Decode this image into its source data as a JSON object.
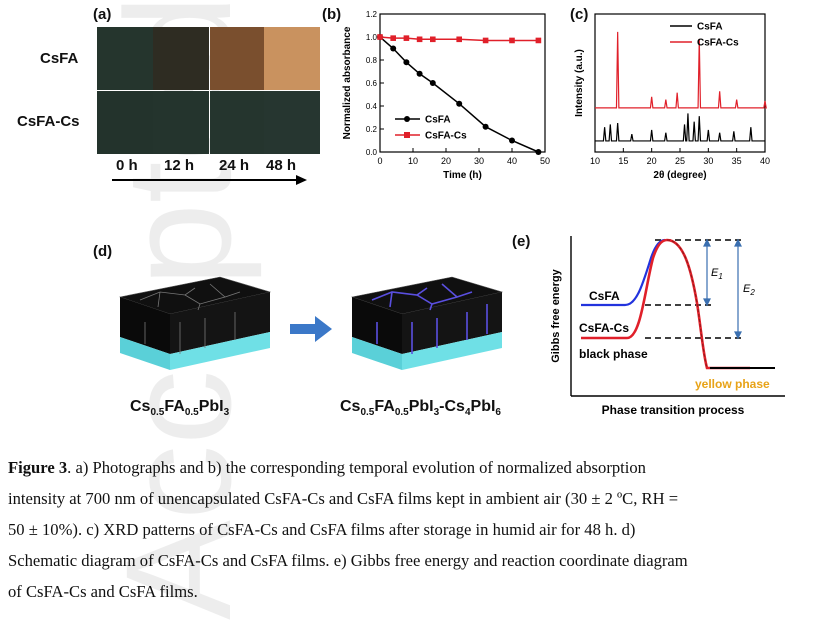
{
  "panel_a": {
    "label": "(a)",
    "rows": [
      "CsFA",
      "CsFA-Cs"
    ],
    "times": [
      "0 h",
      "12 h",
      "24 h",
      "48 h"
    ],
    "colors_top": [
      "#25352d",
      "#2e2c22",
      "#7a4f2e",
      "#c9925f"
    ],
    "colors_bottom": [
      "#23332c",
      "#24342d",
      "#25352e",
      "#263630"
    ]
  },
  "panel_b": {
    "label": "(b)"
  },
  "panel_c": {
    "label": "(c)"
  },
  "panel_d": {
    "label": "(d)",
    "left_formula": {
      "a": "Cs",
      "a_sub": "0.5",
      "b": "FA",
      "b_sub": "0.5",
      "c": "PbI",
      "c_sub": "3"
    },
    "right_formula": {
      "a": "Cs",
      "a_sub": "0.5",
      "b": "FA",
      "b_sub": "0.5",
      "c": "PbI",
      "c_sub": "3",
      "d": "-Cs",
      "d_sub": "4",
      "e": "PbI",
      "e_sub": "6"
    }
  },
  "panel_e": {
    "label": "(e)",
    "ylabel": "Gibbs free energy",
    "xlabel": "Phase transition process",
    "state_csfa": "CsFA",
    "state_csfacs": "CsFA-Cs",
    "state_black": "black phase",
    "state_yellow": "yellow phase",
    "e1": "E",
    "e1_sub": "1",
    "e2": "E",
    "e2_sub": "2",
    "colors": {
      "csfa": "#2233dd",
      "csfacs": "#e0202a",
      "yellow": "#e8a317"
    }
  },
  "chart_data": [
    {
      "type": "line",
      "xlabel": "Time (h)",
      "ylabel": "Normalized absorbance",
      "xlim": [
        0,
        50
      ],
      "ylim": [
        0,
        1.2
      ],
      "xticks": [
        "0",
        "10",
        "20",
        "30",
        "40",
        "50"
      ],
      "yticks": [
        "0.0",
        "0.2",
        "0.4",
        "0.6",
        "0.8",
        "1.0",
        "1.2"
      ],
      "legend_position": "lower-left",
      "series": [
        {
          "name": "CsFA",
          "color": "#000000",
          "marker": "circle",
          "x": [
            0,
            4,
            8,
            12,
            16,
            24,
            32,
            40,
            48
          ],
          "y": [
            1.0,
            0.9,
            0.78,
            0.68,
            0.6,
            0.42,
            0.22,
            0.1,
            0.0
          ]
        },
        {
          "name": "CsFA-Cs",
          "color": "#e0202a",
          "marker": "square",
          "x": [
            0,
            4,
            8,
            12,
            16,
            24,
            32,
            40,
            48
          ],
          "y": [
            1.0,
            0.99,
            0.99,
            0.98,
            0.98,
            0.98,
            0.97,
            0.97,
            0.97
          ]
        }
      ]
    },
    {
      "type": "line",
      "xlabel": "2θ (degree)",
      "ylabel": "Intensity (a.u.)",
      "xlim": [
        10,
        40
      ],
      "xticks": [
        "10",
        "15",
        "20",
        "25",
        "30",
        "35",
        "40"
      ],
      "legend_position": "top-right",
      "series": [
        {
          "name": "CsFA",
          "color": "#000000",
          "baseline": 0.08,
          "peaks": [
            [
              11.7,
              0.1
            ],
            [
              12.7,
              0.12
            ],
            [
              14.0,
              0.13
            ],
            [
              16.5,
              0.05
            ],
            [
              20.0,
              0.08
            ],
            [
              22.5,
              0.06
            ],
            [
              25.8,
              0.12
            ],
            [
              26.4,
              0.2
            ],
            [
              27.5,
              0.14
            ],
            [
              28.4,
              0.18
            ],
            [
              30.0,
              0.08
            ],
            [
              32.0,
              0.06
            ],
            [
              34.5,
              0.07
            ],
            [
              37.5,
              0.1
            ]
          ]
        },
        {
          "name": "CsFA-Cs",
          "color": "#e0202a",
          "baseline": 0.32,
          "peaks": [
            [
              14.0,
              0.55
            ],
            [
              20.0,
              0.08
            ],
            [
              22.5,
              0.06
            ],
            [
              24.5,
              0.11
            ],
            [
              28.4,
              0.5
            ],
            [
              32.0,
              0.12
            ],
            [
              35.0,
              0.06
            ],
            [
              40.0,
              0.05
            ]
          ]
        }
      ]
    }
  ],
  "caption": {
    "line1_bold": "Figure 3",
    "line1": ". a) Photographs and b) the corresponding temporal evolution of normalized absorption",
    "line2": "intensity at 700 nm of unencapsulated CsFA-Cs and CsFA films kept in ambient air (30 ± 2 ºC, RH =",
    "line3": "50 ± 10%). c) XRD patterns of CsFA-Cs and CsFA films after storage in humid air for 48 h. d)",
    "line4": "Schematic diagram of CsFA-Cs and CsFA films. e) Gibbs free energy and reaction coordinate diagram",
    "line5": "of CsFA-Cs and CsFA films."
  },
  "watermark": "Accepted Article"
}
